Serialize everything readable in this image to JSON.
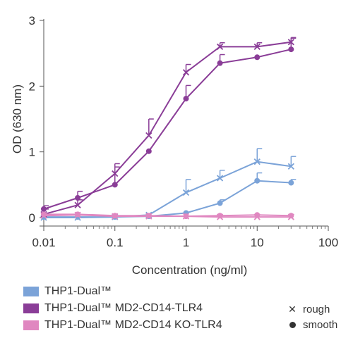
{
  "chart_data": {
    "type": "line",
    "xlabel": "Concentration (ng/ml)",
    "ylabel": "OD (630 nm)",
    "x_scale": "log",
    "xlim": [
      0.01,
      100
    ],
    "ylim": [
      0,
      3
    ],
    "x_ticks": [
      0.01,
      0.1,
      1,
      10,
      100
    ],
    "x_tick_labels": [
      "0.01",
      "0.1",
      "1",
      "10",
      "100"
    ],
    "y_ticks": [
      0,
      1,
      2,
      3
    ],
    "y_tick_labels": [
      "0",
      "1",
      "2",
      "3"
    ],
    "x": [
      0.01,
      0.03,
      0.1,
      0.3,
      1,
      3,
      10,
      30
    ],
    "series": [
      {
        "group": "THP1-Dual™",
        "marker": "rough",
        "color": "#7ba3d8",
        "values": [
          0.0,
          0.0,
          0.01,
          0.04,
          0.38,
          0.6,
          0.85,
          0.78
        ],
        "error": [
          0.0,
          0.0,
          0.0,
          0.0,
          0.2,
          0.12,
          0.2,
          0.15
        ]
      },
      {
        "group": "THP1-Dual™",
        "marker": "smooth",
        "color": "#7ba3d8",
        "values": [
          0.01,
          0.01,
          0.01,
          0.02,
          0.07,
          0.22,
          0.56,
          0.53
        ],
        "error": [
          0.0,
          0.0,
          0.0,
          0.0,
          0.0,
          0.05,
          0.12,
          0.05
        ]
      },
      {
        "group": "THP1-Dual™ MD2-CD14-TLR4",
        "marker": "rough",
        "color": "#8a3d97",
        "values": [
          0.05,
          0.19,
          0.67,
          1.25,
          2.21,
          2.6,
          2.6,
          2.67
        ],
        "error": [
          0.08,
          0.08,
          0.1,
          0.25,
          0.12,
          0.06,
          0.06,
          0.07
        ]
      },
      {
        "group": "THP1-Dual™ MD2-CD14-TLR4",
        "marker": "smooth",
        "color": "#8a3d97",
        "values": [
          0.13,
          0.3,
          0.5,
          1.01,
          1.81,
          2.35,
          2.44,
          2.56
        ],
        "error": [
          0.05,
          0.1,
          0.32,
          0.0,
          0.2,
          0.13,
          0.0,
          0.17
        ]
      },
      {
        "group": "THP1-Dual™ MD2-CD14 KO-TLR4",
        "marker": "rough",
        "color": "#e087c0",
        "values": [
          0.03,
          0.04,
          0.02,
          0.02,
          0.02,
          0.01,
          0.01,
          0.01
        ],
        "error": [
          0.0,
          0.0,
          0.0,
          0.0,
          0.0,
          0.0,
          0.0,
          0.0
        ]
      },
      {
        "group": "THP1-Dual™ MD2-CD14 KO-TLR4",
        "marker": "smooth",
        "color": "#e087c0",
        "values": [
          0.05,
          0.05,
          0.03,
          0.03,
          0.02,
          0.03,
          0.04,
          0.03
        ],
        "error": [
          0.0,
          0.0,
          0.0,
          0.0,
          0.0,
          0.0,
          0.0,
          0.0
        ]
      }
    ]
  },
  "legend": {
    "groups": [
      {
        "label": "THP1-Dual™",
        "color": "#7ba3d8"
      },
      {
        "label": "THP1-Dual™ MD2-CD14-TLR4",
        "color": "#8a3d97"
      },
      {
        "label": "THP1-Dual™ MD2-CD14 KO-TLR4",
        "color": "#e087c0"
      }
    ],
    "markers": [
      {
        "label": "rough",
        "icon": "x-marker-icon"
      },
      {
        "label": "smooth",
        "icon": "dot-marker-icon"
      }
    ]
  }
}
